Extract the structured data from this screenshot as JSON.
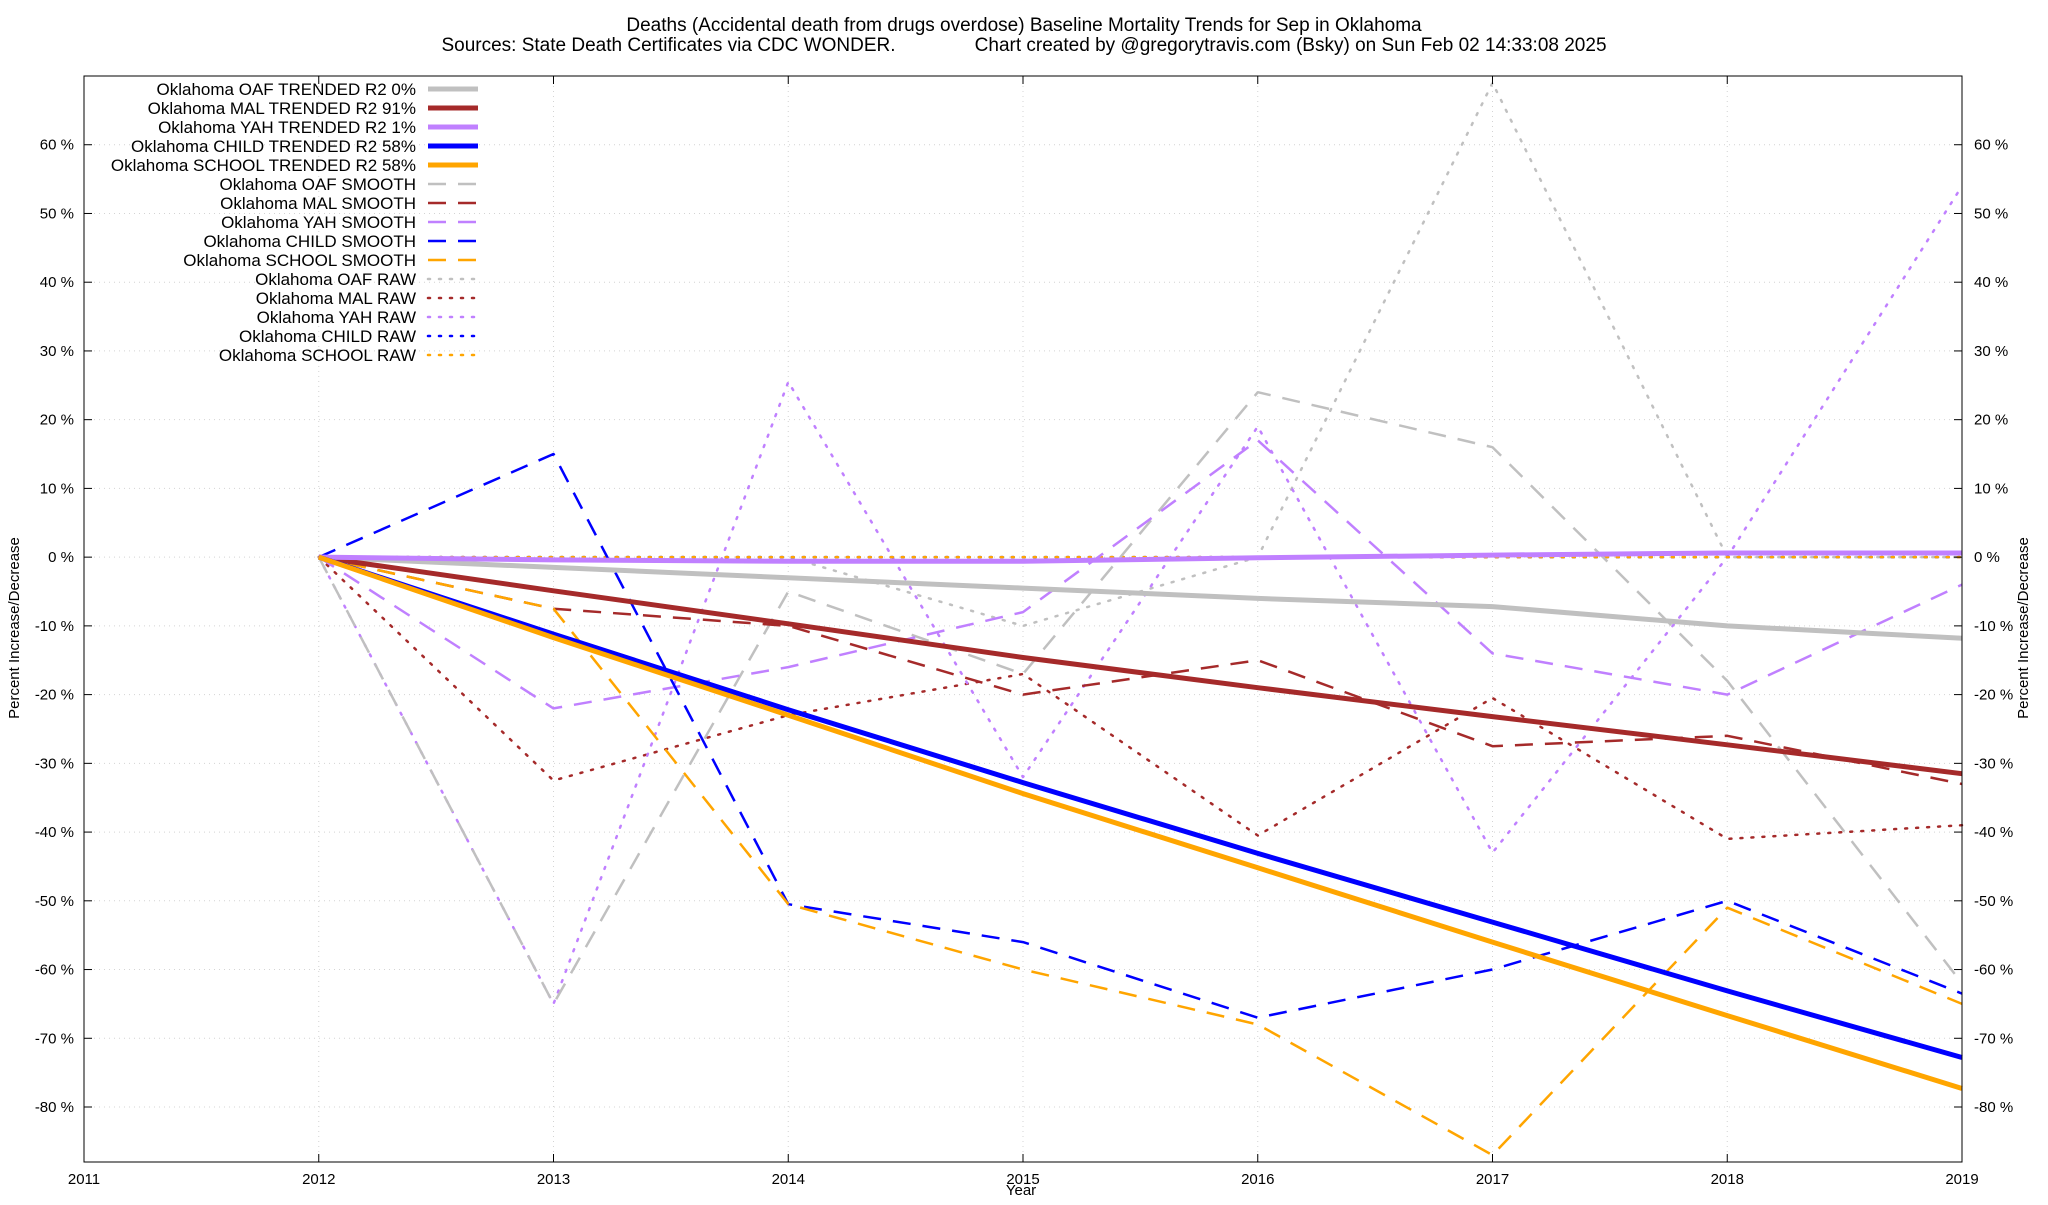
{
  "chart_data": {
    "type": "line",
    "title": "Deaths (Accidental death from drugs overdose)  Baseline Mortality Trends for Sep in Oklahoma",
    "subtitle": "Sources: State Death Certificates via CDC WONDER.               Chart created by @gregorytravis.com (Bsky) on Sun Feb 02 14:33:08 2025",
    "xlabel": "Year",
    "ylabel": "Percent Increase/Decrease",
    "y2label": "Percent Increase/Decrease",
    "xlim": [
      2011,
      2019
    ],
    "ylim": [
      -88,
      70
    ],
    "x_ticks": [
      "2011",
      "2012",
      "2013",
      "2014",
      "2015",
      "2016",
      "2017",
      "2018",
      "2019"
    ],
    "y_ticks": [
      {
        "value": 60,
        "label": "60 %"
      },
      {
        "value": 50,
        "label": "50 %"
      },
      {
        "value": 40,
        "label": "40 %"
      },
      {
        "value": 30,
        "label": "30 %"
      },
      {
        "value": 20,
        "label": "20 %"
      },
      {
        "value": 10,
        "label": "10 %"
      },
      {
        "value": 0,
        "label": "0 %"
      },
      {
        "value": -10,
        "label": "-10 %"
      },
      {
        "value": -20,
        "label": "-20 %"
      },
      {
        "value": -30,
        "label": "-30 %"
      },
      {
        "value": -40,
        "label": "-40 %"
      },
      {
        "value": -50,
        "label": "-50 %"
      },
      {
        "value": -60,
        "label": "-60 %"
      },
      {
        "value": -70,
        "label": "-70 %"
      },
      {
        "value": -80,
        "label": "-80 %"
      }
    ],
    "grid": true,
    "legend_position": "top-left",
    "series": [
      {
        "name": "Oklahoma OAF TRENDED R2   0%",
        "style": "solid",
        "color": "#c0c0c0",
        "x": [
          2012,
          2013,
          2014,
          2015,
          2016,
          2017,
          2018,
          2019
        ],
        "y": [
          0,
          -1.5,
          -3,
          -4.5,
          -6,
          -7.2,
          -10,
          -11.8
        ]
      },
      {
        "name": "Oklahoma MAL TRENDED R2  91%",
        "style": "solid",
        "color": "#a52a2a",
        "x": [
          2012,
          2013,
          2014,
          2015,
          2016,
          2017,
          2018,
          2019
        ],
        "y": [
          0,
          -4.9,
          -9.7,
          -14.6,
          -19,
          -23.2,
          -27.3,
          -31.5
        ]
      },
      {
        "name": "Oklahoma YAH TRENDED R2   1%",
        "style": "solid",
        "color": "#c080ff",
        "x": [
          2012,
          2013,
          2014,
          2015,
          2016,
          2017,
          2018,
          2019
        ],
        "y": [
          0,
          -0.4,
          -0.6,
          -0.6,
          -0.1,
          0.3,
          0.6,
          0.6
        ]
      },
      {
        "name": "Oklahoma CHILD TRENDED R2  58%",
        "style": "solid",
        "color": "#0000ff",
        "x": [
          2012,
          2013,
          2014,
          2015,
          2016,
          2017,
          2018,
          2019
        ],
        "y": [
          0,
          -11.2,
          -22.2,
          -32.8,
          -43.1,
          -53.1,
          -63.1,
          -72.8
        ]
      },
      {
        "name": "Oklahoma SCHOOL TRENDED R2  58%",
        "style": "solid",
        "color": "#ffa500",
        "x": [
          2012,
          2013,
          2014,
          2015,
          2016,
          2017,
          2018,
          2019
        ],
        "y": [
          0,
          -11.7,
          -23,
          -34.4,
          -45.2,
          -56,
          -66.7,
          -77.3
        ]
      },
      {
        "name": "Oklahoma OAF SMOOTH",
        "style": "dashed",
        "color": "#c0c0c0",
        "x": [
          2012,
          2013,
          2014,
          2015,
          2016,
          2017,
          2018,
          2019
        ],
        "y": [
          0,
          -65,
          -5,
          -17,
          24,
          16,
          -18,
          -62
        ]
      },
      {
        "name": "Oklahoma MAL SMOOTH",
        "style": "dashed",
        "color": "#a52a2a",
        "x": [
          2012,
          2013,
          2014,
          2015,
          2016,
          2017,
          2018,
          2019
        ],
        "y": [
          0,
          -7.5,
          -10,
          -20,
          -15,
          -27.5,
          -26,
          -33
        ]
      },
      {
        "name": "Oklahoma YAH SMOOTH",
        "style": "dashed",
        "color": "#c080ff",
        "x": [
          2012,
          2013,
          2014,
          2015,
          2016,
          2017,
          2018,
          2019
        ],
        "y": [
          0,
          -22,
          -16,
          -8,
          17,
          -14,
          -20,
          -4
        ]
      },
      {
        "name": "Oklahoma CHILD SMOOTH",
        "style": "dashed",
        "color": "#0000ff",
        "x": [
          2012,
          2013,
          2014,
          2015,
          2016,
          2017,
          2018,
          2019
        ],
        "y": [
          0,
          15,
          -50.5,
          -56,
          -67,
          -60,
          -50,
          -63.5
        ]
      },
      {
        "name": "Oklahoma SCHOOL SMOOTH",
        "style": "dashed",
        "color": "#ffa500",
        "x": [
          2012,
          2013,
          2014,
          2015,
          2016,
          2017,
          2018,
          2019
        ],
        "y": [
          0,
          -7.5,
          -50.5,
          -60,
          -68,
          -87,
          -51,
          -65
        ]
      },
      {
        "name": "Oklahoma OAF RAW",
        "style": "dotted",
        "color": "#c0c0c0",
        "x": [
          2012,
          2013,
          2014,
          2015,
          2016,
          2017,
          2018,
          2019
        ],
        "y": [
          0,
          0,
          0,
          -10,
          0,
          69,
          0,
          0
        ]
      },
      {
        "name": "Oklahoma MAL RAW",
        "style": "dotted",
        "color": "#a52a2a",
        "x": [
          2012,
          2013,
          2014,
          2015,
          2016,
          2017,
          2018,
          2019
        ],
        "y": [
          0,
          -32.5,
          -23,
          -17,
          -40.5,
          -20.5,
          -41,
          -39
        ]
      },
      {
        "name": "Oklahoma YAH RAW",
        "style": "dotted",
        "color": "#c080ff",
        "x": [
          2012,
          2013,
          2014,
          2015,
          2016,
          2017,
          2018,
          2019
        ],
        "y": [
          0,
          -65,
          25.5,
          -32,
          19,
          -43,
          0,
          54
        ]
      },
      {
        "name": "Oklahoma CHILD RAW",
        "style": "dotted",
        "color": "#0000ff",
        "x": [
          2012,
          2013,
          2014,
          2015,
          2016,
          2017,
          2018,
          2019
        ],
        "y": [
          0,
          0,
          0,
          0,
          0,
          0,
          0,
          0
        ]
      },
      {
        "name": "Oklahoma SCHOOL RAW",
        "style": "dotted",
        "color": "#ffa500",
        "x": [
          2012,
          2013,
          2014,
          2015,
          2016,
          2017,
          2018,
          2019
        ],
        "y": [
          0,
          0,
          0,
          0,
          0,
          0,
          0,
          0
        ]
      }
    ]
  }
}
